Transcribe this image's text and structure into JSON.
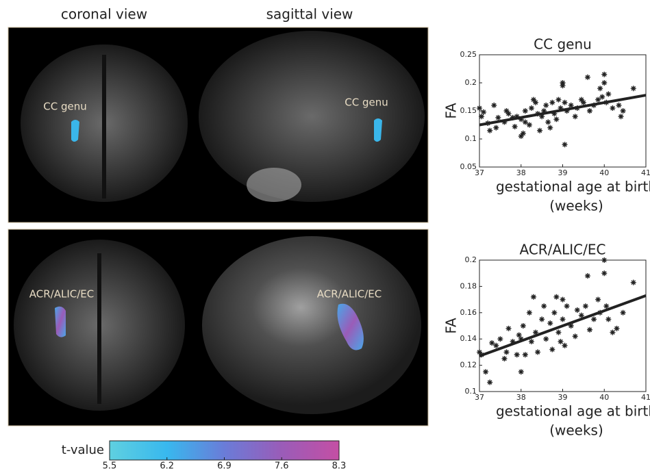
{
  "panels": {
    "column_labels": [
      "coronal view",
      "sagittal view"
    ],
    "region_labels": [
      [
        "CC genu",
        "CC genu"
      ],
      [
        "ACR/ALIC/EC",
        "ACR/ALIC/EC"
      ]
    ]
  },
  "colorbar": {
    "label": "t-value",
    "ticks": [
      5.5,
      6.2,
      6.9,
      7.6,
      8.3
    ],
    "colors": [
      "#5fd0e0",
      "#38b8ee",
      "#6a7cd8",
      "#9a5cb8",
      "#c44fa4"
    ]
  },
  "chart_data": [
    {
      "type": "scatter",
      "title": "CC genu",
      "ylabel": "FA",
      "xlabel": [
        "gestational age at birth",
        "(weeks)"
      ],
      "color": "#222222",
      "x": [
        37.0,
        37.05,
        37.1,
        37.2,
        37.25,
        37.35,
        37.4,
        37.45,
        37.6,
        37.65,
        37.7,
        37.8,
        37.85,
        37.9,
        38.0,
        38.0,
        38.05,
        38.1,
        38.1,
        38.2,
        38.25,
        38.3,
        38.35,
        38.4,
        38.45,
        38.5,
        38.55,
        38.6,
        38.65,
        38.7,
        38.75,
        38.8,
        38.85,
        38.9,
        38.95,
        39.0,
        39.0,
        39.05,
        39.05,
        39.1,
        39.2,
        39.3,
        39.35,
        39.45,
        39.5,
        39.6,
        39.65,
        39.75,
        39.85,
        39.9,
        39.95,
        40.0,
        40.0,
        40.05,
        40.1,
        40.2,
        40.35,
        40.4,
        40.45,
        40.7
      ],
      "values": [
        0.155,
        0.14,
        0.148,
        0.128,
        0.115,
        0.16,
        0.12,
        0.138,
        0.13,
        0.15,
        0.145,
        0.138,
        0.122,
        0.14,
        0.135,
        0.105,
        0.11,
        0.13,
        0.15,
        0.125,
        0.155,
        0.17,
        0.165,
        0.145,
        0.115,
        0.14,
        0.15,
        0.16,
        0.13,
        0.12,
        0.165,
        0.145,
        0.135,
        0.17,
        0.155,
        0.2,
        0.195,
        0.09,
        0.165,
        0.15,
        0.16,
        0.14,
        0.155,
        0.17,
        0.165,
        0.21,
        0.15,
        0.16,
        0.17,
        0.19,
        0.175,
        0.215,
        0.2,
        0.165,
        0.18,
        0.155,
        0.16,
        0.14,
        0.15,
        0.19
      ],
      "fit": {
        "x": [
          37,
          41
        ],
        "values": [
          0.125,
          0.178
        ]
      },
      "xlim": [
        37,
        41
      ],
      "xticks": [
        37,
        38,
        39,
        40,
        41
      ],
      "ylim": [
        0.05,
        0.25
      ],
      "yticks": [
        0.05,
        0.1,
        0.15,
        0.2,
        0.25
      ]
    },
    {
      "type": "scatter",
      "title": "ACR/ALIC/EC",
      "ylabel": "FA",
      "xlabel": [
        "gestational age at birth",
        "(weeks)"
      ],
      "color": "#222222",
      "x": [
        37.0,
        37.05,
        37.15,
        37.25,
        37.3,
        37.4,
        37.5,
        37.6,
        37.65,
        37.7,
        37.8,
        37.9,
        37.95,
        38.0,
        38.0,
        38.05,
        38.1,
        38.2,
        38.25,
        38.3,
        38.35,
        38.4,
        38.5,
        38.55,
        38.6,
        38.7,
        38.75,
        38.8,
        38.85,
        38.9,
        38.95,
        39.0,
        39.0,
        39.05,
        39.1,
        39.2,
        39.3,
        39.35,
        39.45,
        39.55,
        39.6,
        39.65,
        39.75,
        39.85,
        39.9,
        40.0,
        40.0,
        40.05,
        40.1,
        40.2,
        40.3,
        40.45,
        40.7
      ],
      "values": [
        0.13,
        0.128,
        0.115,
        0.107,
        0.137,
        0.135,
        0.14,
        0.125,
        0.13,
        0.148,
        0.138,
        0.128,
        0.143,
        0.14,
        0.115,
        0.15,
        0.128,
        0.16,
        0.138,
        0.172,
        0.145,
        0.13,
        0.155,
        0.165,
        0.14,
        0.152,
        0.132,
        0.16,
        0.172,
        0.145,
        0.138,
        0.17,
        0.155,
        0.135,
        0.165,
        0.15,
        0.142,
        0.162,
        0.158,
        0.165,
        0.188,
        0.147,
        0.155,
        0.17,
        0.16,
        0.2,
        0.19,
        0.165,
        0.155,
        0.145,
        0.148,
        0.16,
        0.183
      ],
      "fit": {
        "x": [
          37,
          41
        ],
        "values": [
          0.127,
          0.173
        ]
      },
      "xlim": [
        37,
        41
      ],
      "xticks": [
        37,
        38,
        39,
        40,
        41
      ],
      "ylim": [
        0.1,
        0.2
      ],
      "yticks": [
        0.1,
        0.12,
        0.14,
        0.16,
        0.18,
        0.2
      ]
    }
  ]
}
